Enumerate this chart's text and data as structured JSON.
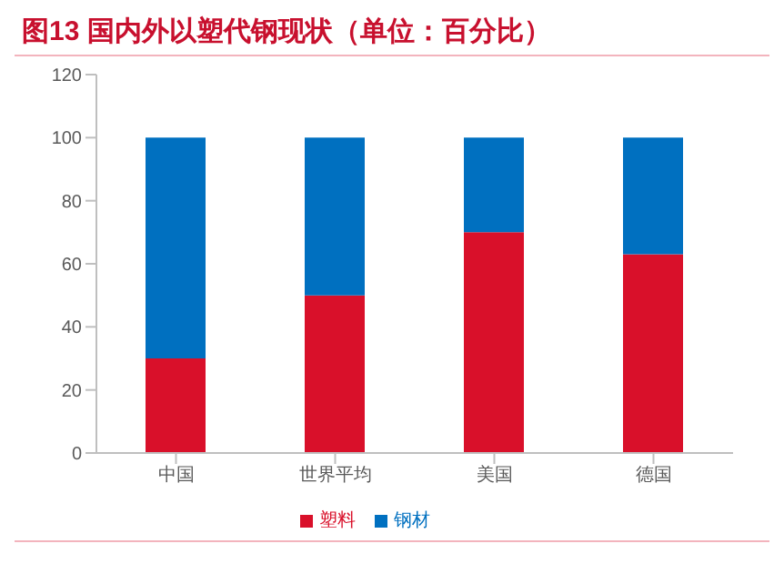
{
  "chart_data": {
    "type": "bar",
    "title": "图13  国内外以塑代钢现状（单位：百分比）",
    "categories": [
      "中国",
      "世界平均",
      "美国",
      "德国"
    ],
    "stacked": true,
    "series": [
      {
        "name": "塑料",
        "color": "#d9102a",
        "values": [
          30,
          50,
          70,
          63
        ]
      },
      {
        "name": "钢材",
        "color": "#0070c0",
        "values": [
          70,
          50,
          30,
          37
        ]
      }
    ],
    "ylim": [
      0,
      120
    ],
    "yticks": [
      0,
      20,
      40,
      60,
      80,
      100,
      120
    ],
    "grid": false,
    "legend": "bottom"
  }
}
